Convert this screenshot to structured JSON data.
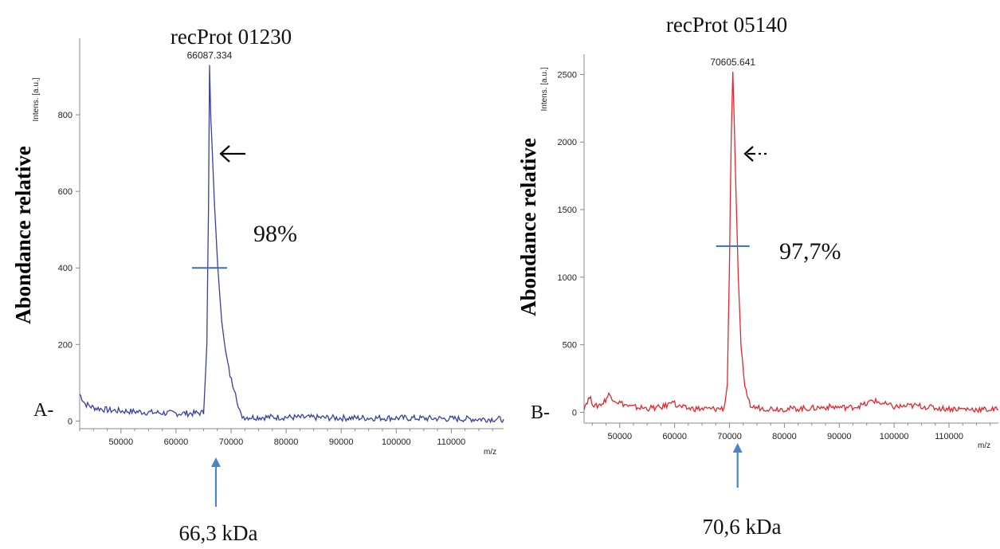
{
  "chart_data": [
    {
      "type": "line",
      "title": "recProt 01230",
      "panel_label": "A-",
      "ylabel": "Abondance relative",
      "y_unit": "Intens. [a.u.]",
      "x_unit": "m/z",
      "xlim": [
        42500,
        119500
      ],
      "ylim": [
        -20,
        1000
      ],
      "x_ticks": [
        50000,
        60000,
        70000,
        80000,
        90000,
        100000,
        110000
      ],
      "x_tick_labels": [
        "50000",
        "60000",
        "70000",
        "80000",
        "90000",
        "100000",
        "110000"
      ],
      "y_ticks": [
        0,
        200,
        400,
        600,
        800
      ],
      "y_tick_labels": [
        "0",
        "200",
        "400",
        "600",
        "800"
      ],
      "peak_label": "66087.334",
      "peak_x": 66087.334,
      "peak_y": 930,
      "half_height_y": 400,
      "percent_label": "98%",
      "mass_label": "66,3 kDa",
      "color": "#3a3ea0",
      "series": [
        {
          "x": [
            42500,
            43500,
            45000,
            48000,
            52000,
            56000,
            60000,
            63000,
            65000,
            65600,
            65900,
            66087,
            66300,
            66600,
            67000,
            67600,
            68300,
            69000,
            69800,
            70300,
            70800,
            71300,
            71800,
            72500,
            75000,
            80000,
            85000,
            90000,
            95000,
            100000,
            105000,
            110000,
            115000,
            119500
          ],
          "y": [
            70,
            45,
            35,
            28,
            25,
            22,
            20,
            20,
            22,
            200,
            560,
            930,
            800,
            700,
            560,
            400,
            260,
            180,
            120,
            95,
            80,
            35,
            15,
            10,
            10,
            10,
            9,
            8,
            8,
            8,
            7,
            6,
            5,
            5
          ]
        }
      ]
    },
    {
      "type": "line",
      "title": "recProt 05140",
      "panel_label": "B-",
      "ylabel": "Abondance relative",
      "y_unit": "Intens. [a.u.]",
      "x_unit": "m/z",
      "xlim": [
        43500,
        119000
      ],
      "ylim": [
        -80,
        2650
      ],
      "x_ticks": [
        50000,
        60000,
        70000,
        80000,
        90000,
        100000,
        110000
      ],
      "x_tick_labels": [
        "50000",
        "60000",
        "70000",
        "80000",
        "90000",
        "100000",
        "110000"
      ],
      "y_ticks": [
        0,
        500,
        1000,
        1500,
        2000,
        2500
      ],
      "y_tick_labels": [
        "0",
        "500",
        "1000",
        "1500",
        "2000",
        "2500"
      ],
      "peak_label": "70605.641",
      "peak_x": 70605.641,
      "peak_y": 2520,
      "half_height_y": 1230,
      "percent_label": "97,7%",
      "mass_label": "70,6 kDa",
      "color": "#e8242b",
      "series": [
        {
          "x": [
            43500,
            44500,
            45500,
            47000,
            48000,
            49500,
            52000,
            55000,
            57500,
            59000,
            59600,
            60200,
            62000,
            65000,
            67500,
            69000,
            69600,
            70000,
            70300,
            70605,
            70900,
            71200,
            71600,
            72100,
            72600,
            73200,
            74000,
            76000,
            80000,
            85000,
            88000,
            92000,
            95000,
            96000,
            97500,
            100000,
            104000,
            108000,
            112000,
            116000,
            119000
          ],
          "y": [
            40,
            110,
            40,
            70,
            130,
            80,
            40,
            30,
            35,
            60,
            100,
            50,
            30,
            25,
            25,
            30,
            200,
            1100,
            2000,
            2520,
            2100,
            1600,
            1000,
            500,
            250,
            100,
            40,
            30,
            25,
            30,
            40,
            35,
            60,
            90,
            70,
            40,
            50,
            30,
            25,
            20,
            20
          ]
        }
      ]
    }
  ]
}
